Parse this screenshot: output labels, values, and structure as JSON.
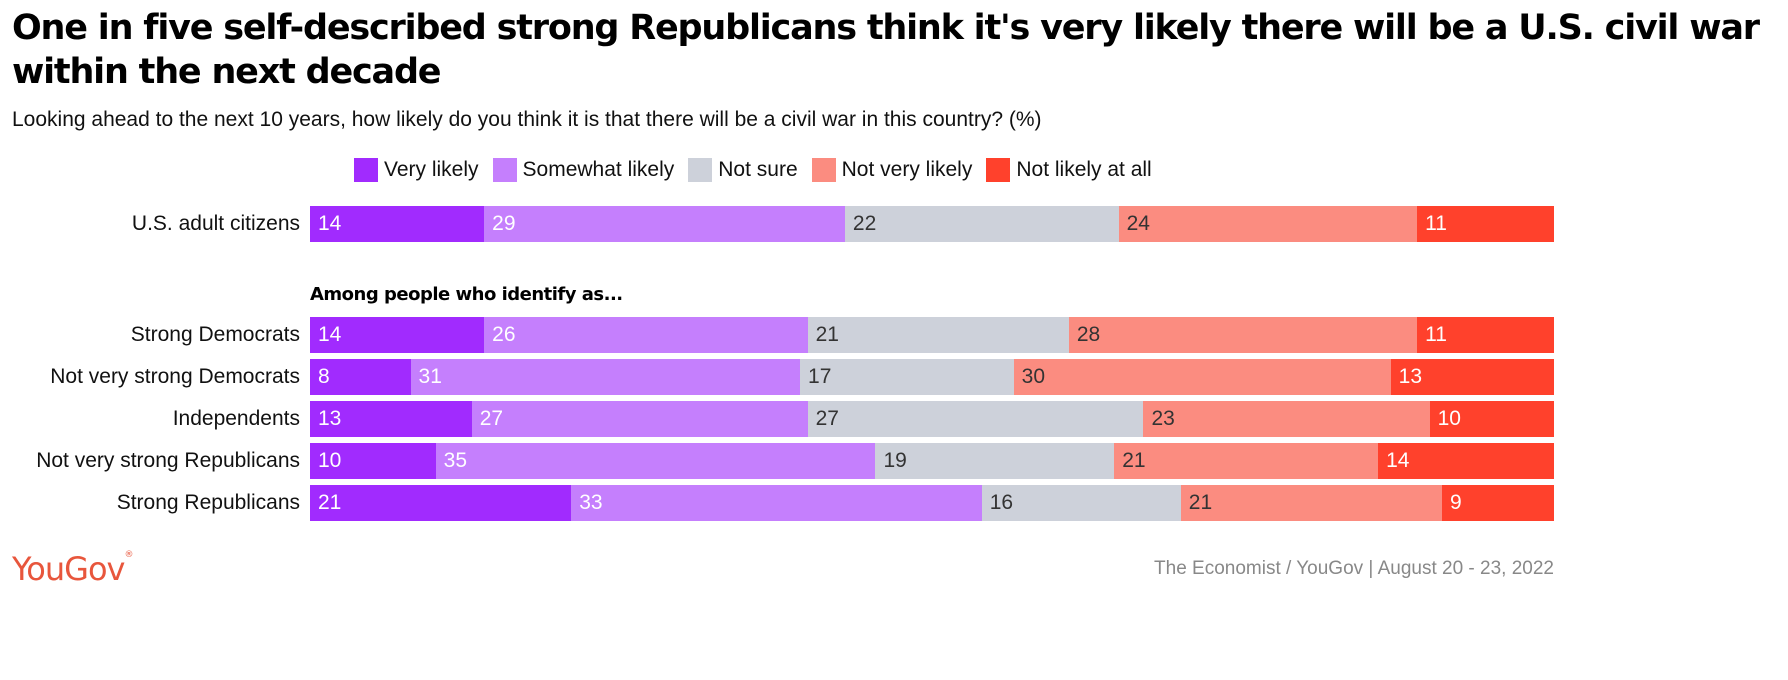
{
  "title": "One in five self-described strong Republicans think it's very likely there will be a U.S. civil war within the next decade",
  "subtitle": "Looking ahead to the next 10 years, how likely do you think it is that there will be a civil war in this country? (%)",
  "group_heading": "Among people who identify as...",
  "logo": "YouGov",
  "source": "The Economist / YouGov | August 20 - 23, 2022",
  "chart_data": {
    "type": "bar",
    "orientation": "horizontal-stacked-100",
    "title": "One in five self-described strong Republicans think it's very likely there will be a U.S. civil war within the next decade",
    "subtitle": "Looking ahead to the next 10 years, how likely do you think it is that there will be a civil war in this country? (%)",
    "legend_position": "top",
    "categories": [
      "U.S. adult citizens",
      "Strong Democrats",
      "Not very strong Democrats",
      "Independents",
      "Not very strong Republicans",
      "Strong Republicans"
    ],
    "series": [
      {
        "name": "Very likely",
        "color": "#a12bfe",
        "label_color": "#ffffff",
        "values": [
          14,
          14,
          8,
          13,
          10,
          21
        ]
      },
      {
        "name": "Somewhat likely",
        "color": "#c57ffd",
        "label_color": "#ffffff",
        "values": [
          29,
          26,
          31,
          27,
          35,
          33
        ]
      },
      {
        "name": "Not sure",
        "color": "#cdd1da",
        "label_color": "#333333",
        "values": [
          22,
          21,
          17,
          27,
          19,
          16
        ]
      },
      {
        "name": "Not very likely",
        "color": "#fb8c80",
        "label_color": "#333333",
        "values": [
          24,
          28,
          30,
          23,
          21,
          21
        ]
      },
      {
        "name": "Not likely at all",
        "color": "#ff412c",
        "label_color": "#ffffff",
        "values": [
          11,
          11,
          13,
          10,
          14,
          9
        ]
      }
    ],
    "xlabel": "",
    "ylabel": "",
    "grid": false
  }
}
